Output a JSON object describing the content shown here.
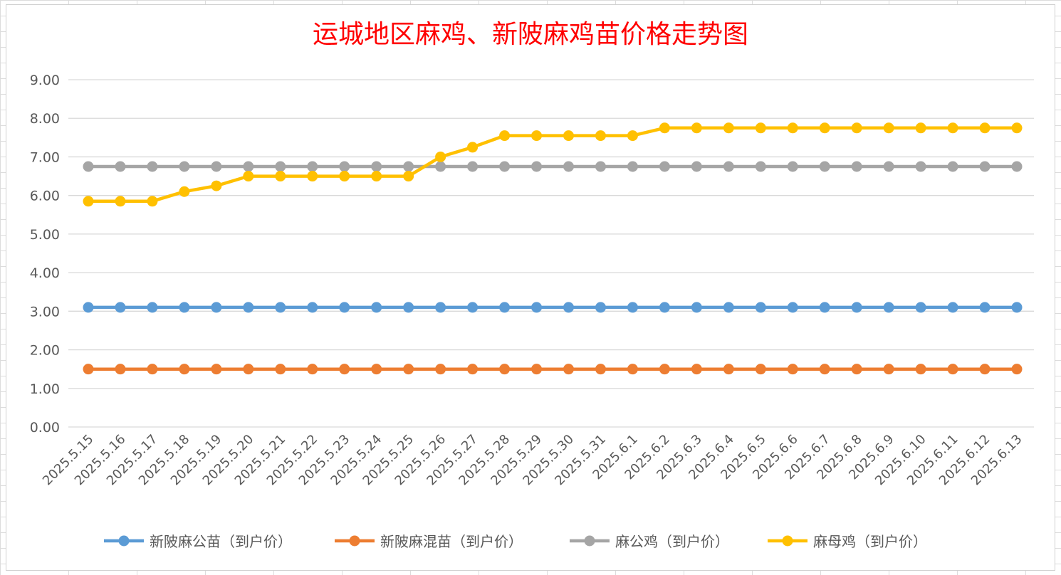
{
  "chart_data": {
    "type": "line",
    "title": "运城地区麻鸡、新陂麻鸡苗价格走势图",
    "xlabel": "",
    "ylabel": "",
    "ylim": [
      0,
      9
    ],
    "yticks": [
      "0.00",
      "1.00",
      "2.00",
      "3.00",
      "4.00",
      "5.00",
      "6.00",
      "7.00",
      "8.00",
      "9.00"
    ],
    "grid": true,
    "legend_position": "bottom",
    "categories": [
      "2025.5.15",
      "2025.5.16",
      "2025.5.17",
      "2025.5.18",
      "2025.5.19",
      "2025.5.20",
      "2025.5.21",
      "2025.5.22",
      "2025.5.23",
      "2025.5.24",
      "2025.5.25",
      "2025.5.26",
      "2025.5.27",
      "2025.5.28",
      "2025.5.29",
      "2025.5.30",
      "2025.5.31",
      "2025.6.1",
      "2025.6.2",
      "2025.6.3",
      "2025.6.4",
      "2025.6.5",
      "2025.6.6",
      "2025.6.7",
      "2025.6.8",
      "2025.6.9",
      "2025.6.10",
      "2025.6.11",
      "2025.6.12",
      "2025.6.13"
    ],
    "series": [
      {
        "name": "新陂麻公苗（到户价）",
        "color": "#5b9bd5",
        "values": [
          3.1,
          3.1,
          3.1,
          3.1,
          3.1,
          3.1,
          3.1,
          3.1,
          3.1,
          3.1,
          3.1,
          3.1,
          3.1,
          3.1,
          3.1,
          3.1,
          3.1,
          3.1,
          3.1,
          3.1,
          3.1,
          3.1,
          3.1,
          3.1,
          3.1,
          3.1,
          3.1,
          3.1,
          3.1,
          3.1
        ]
      },
      {
        "name": "新陂麻混苗（到户价）",
        "color": "#ed7d31",
        "values": [
          1.5,
          1.5,
          1.5,
          1.5,
          1.5,
          1.5,
          1.5,
          1.5,
          1.5,
          1.5,
          1.5,
          1.5,
          1.5,
          1.5,
          1.5,
          1.5,
          1.5,
          1.5,
          1.5,
          1.5,
          1.5,
          1.5,
          1.5,
          1.5,
          1.5,
          1.5,
          1.5,
          1.5,
          1.5,
          1.5
        ]
      },
      {
        "name": "麻公鸡（到户价）",
        "color": "#a5a5a5",
        "values": [
          6.75,
          6.75,
          6.75,
          6.75,
          6.75,
          6.75,
          6.75,
          6.75,
          6.75,
          6.75,
          6.75,
          6.75,
          6.75,
          6.75,
          6.75,
          6.75,
          6.75,
          6.75,
          6.75,
          6.75,
          6.75,
          6.75,
          6.75,
          6.75,
          6.75,
          6.75,
          6.75,
          6.75,
          6.75,
          6.75
        ]
      },
      {
        "name": "麻母鸡（到户价）",
        "color": "#ffc000",
        "values": [
          5.85,
          5.85,
          5.85,
          6.1,
          6.25,
          6.5,
          6.5,
          6.5,
          6.5,
          6.5,
          6.5,
          7.0,
          7.25,
          7.55,
          7.55,
          7.55,
          7.55,
          7.55,
          7.75,
          7.75,
          7.75,
          7.75,
          7.75,
          7.75,
          7.75,
          7.75,
          7.75,
          7.75,
          7.75,
          7.75
        ]
      }
    ]
  }
}
